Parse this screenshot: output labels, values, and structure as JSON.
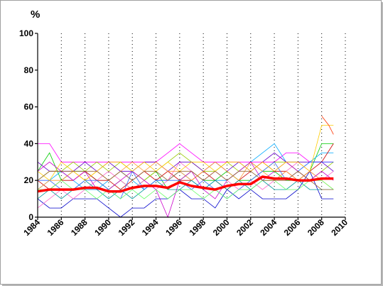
{
  "chart_data": {
    "type": "line",
    "ylabel": "%",
    "xlim": [
      1984,
      2010
    ],
    "ylim": [
      0,
      100
    ],
    "x_ticks": [
      "1984",
      "1986",
      "1988",
      "1990",
      "1992",
      "1994",
      "1996",
      "1998",
      "2000",
      "2002",
      "2004",
      "2006",
      "2008",
      "2010"
    ],
    "y_ticks": [
      "0",
      "20",
      "40",
      "60",
      "80",
      "100"
    ],
    "x_grid": "dotted-vertical",
    "legend": "none",
    "mean_series": {
      "color": "#ff0000",
      "x": [
        1984,
        1985,
        1986,
        1987,
        1988,
        1989,
        1990,
        1991,
        1992,
        1993,
        1994,
        1995,
        1996,
        1997,
        1998,
        1999,
        2000,
        2001,
        2002,
        2003,
        2004,
        2005,
        2006,
        2007,
        2008,
        2009
      ],
      "values": [
        14,
        15,
        15,
        15,
        16,
        16,
        14,
        14,
        16,
        17,
        17,
        16,
        19,
        17,
        16,
        15,
        17,
        18,
        18,
        22,
        21,
        21,
        20,
        20,
        21,
        21
      ]
    },
    "series": [
      {
        "color": "#ff00ff",
        "values": [
          40,
          40,
          30,
          30,
          30,
          30,
          30,
          30,
          30,
          30,
          30,
          35,
          40,
          35,
          30,
          30,
          30,
          30,
          30,
          30,
          30,
          35,
          35,
          30,
          30,
          30
        ]
      },
      {
        "color": "#00cc00",
        "values": [
          25,
          35,
          20,
          25,
          25,
          20,
          15,
          20,
          15,
          20,
          25,
          15,
          20,
          25,
          20,
          20,
          25,
          20,
          20,
          25,
          25,
          20,
          20,
          25,
          40,
          40
        ]
      },
      {
        "color": "#0000cc",
        "values": [
          10,
          5,
          5,
          10,
          10,
          10,
          5,
          0,
          5,
          5,
          10,
          10,
          15,
          10,
          10,
          5,
          15,
          10,
          15,
          10,
          10,
          10,
          15,
          25,
          10,
          10
        ]
      },
      {
        "color": "#00aaff",
        "values": [
          15,
          20,
          25,
          20,
          15,
          15,
          20,
          25,
          20,
          15,
          20,
          20,
          25,
          20,
          15,
          20,
          20,
          25,
          30,
          35,
          40,
          30,
          25,
          30,
          35,
          35
        ]
      },
      {
        "color": "#cc0000",
        "values": [
          20,
          15,
          20,
          20,
          25,
          20,
          20,
          15,
          20,
          25,
          20,
          25,
          20,
          20,
          25,
          20,
          15,
          20,
          25,
          30,
          25,
          25,
          20,
          25,
          30,
          40
        ]
      },
      {
        "color": "#ff66cc",
        "values": [
          5,
          10,
          15,
          10,
          15,
          20,
          25,
          20,
          15,
          20,
          15,
          20,
          30,
          25,
          20,
          25,
          20,
          15,
          20,
          15,
          20,
          25,
          30,
          25,
          20,
          25
        ]
      },
      {
        "color": "#99cc00",
        "values": [
          20,
          25,
          25,
          30,
          25,
          30,
          25,
          30,
          25,
          20,
          25,
          30,
          35,
          30,
          25,
          25,
          30,
          25,
          30,
          25,
          30,
          30,
          25,
          20,
          25,
          30
        ]
      },
      {
        "color": "#6600cc",
        "values": [
          30,
          25,
          25,
          25,
          30,
          25,
          30,
          25,
          25,
          30,
          30,
          25,
          30,
          30,
          25,
          30,
          25,
          30,
          25,
          30,
          35,
          30,
          30,
          30,
          30,
          25
        ]
      },
      {
        "color": "#ff9933",
        "values": [
          15,
          20,
          20,
          25,
          20,
          25,
          20,
          25,
          30,
          25,
          30,
          25,
          25,
          20,
          25,
          30,
          25,
          20,
          30,
          25,
          20,
          25,
          20,
          25,
          20,
          15
        ]
      },
      {
        "color": "#cc00cc",
        "values": [
          25,
          30,
          25,
          20,
          25,
          15,
          15,
          20,
          25,
          20,
          15,
          0,
          20,
          25,
          15,
          10,
          20,
          25,
          30,
          20,
          25,
          30,
          25,
          20,
          25,
          20
        ]
      },
      {
        "color": "#009999",
        "values": [
          10,
          15,
          10,
          15,
          20,
          15,
          10,
          15,
          10,
          15,
          20,
          15,
          15,
          20,
          15,
          20,
          15,
          20,
          15,
          20,
          15,
          15,
          20,
          15,
          15,
          15
        ]
      },
      {
        "color": "#3366ff",
        "values": [
          20,
          20,
          15,
          15,
          20,
          20,
          15,
          10,
          25,
          15,
          20,
          20,
          20,
          15,
          20,
          15,
          10,
          15,
          20,
          25,
          30,
          20,
          25,
          30,
          30,
          30
        ]
      },
      {
        "color": "#ffcc00",
        "values": [
          25,
          20,
          30,
          25,
          20,
          25,
          30,
          30,
          25,
          30,
          25,
          30,
          25,
          30,
          30,
          25,
          30,
          30,
          25,
          30,
          25,
          30,
          30,
          25,
          50,
          50
        ]
      },
      {
        "color": "#66ff66",
        "values": [
          15,
          15,
          20,
          15,
          15,
          10,
          15,
          10,
          15,
          10,
          15,
          10,
          15,
          15,
          10,
          15,
          10,
          15,
          15,
          20,
          20,
          15,
          15,
          20,
          20,
          15
        ]
      },
      {
        "color": "#996633",
        "values": [
          20,
          25,
          25,
          25,
          25,
          25,
          20,
          25,
          20,
          25,
          25,
          20,
          25,
          25,
          20,
          25,
          20,
          25,
          25,
          20,
          20,
          20,
          25,
          20,
          15,
          15
        ]
      },
      {
        "color": "#ff3300",
        "x": [
          2008,
          2008.6,
          2009
        ],
        "values": [
          55,
          50,
          45
        ]
      }
    ]
  }
}
